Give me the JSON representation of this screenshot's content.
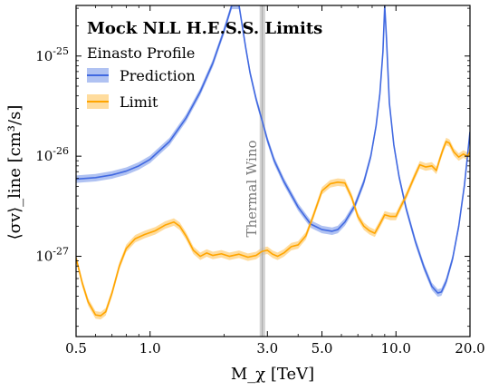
{
  "chart_data": {
    "type": "line",
    "title": "Mock NLL H.E.S.S. Limits",
    "subtitle": "Einasto Profile",
    "xlabel": "M_χ [TeV]",
    "ylabel": "⟨σv⟩_line [cm³/s]",
    "x_scale": "log",
    "y_scale": "log",
    "xlim": [
      0.5,
      20.0
    ],
    "ylim": [
      1.58e-28,
      3.2e-25
    ],
    "x_tick_values": [
      0.5,
      1.0,
      3.0,
      5.0,
      10.0,
      20.0
    ],
    "x_tick_labels": [
      "0.5",
      "1.0",
      "3.0",
      "5.0",
      "10.0",
      "20.0"
    ],
    "y_tick_values": [
      1e-27,
      1e-26,
      1e-25
    ],
    "y_tick_labels": [
      "10^-27",
      "10^-26",
      "10^-25"
    ],
    "legend_position": "top-left",
    "grid": false,
    "annotation": {
      "text": "Thermal Wino",
      "x_range": [
        2.79,
        2.94
      ]
    },
    "series": [
      {
        "name": "Prediction",
        "color": "#4169e1",
        "band_color": "#6f8fe8",
        "x": [
          0.5,
          0.6,
          0.7,
          0.8,
          0.9,
          1.0,
          1.2,
          1.4,
          1.6,
          1.8,
          2.0,
          2.15,
          2.3,
          2.45,
          2.55,
          2.7,
          2.85,
          3.0,
          3.2,
          3.5,
          4.0,
          4.5,
          5.0,
          5.5,
          5.8,
          6.2,
          6.8,
          7.4,
          7.9,
          8.3,
          8.6,
          8.85,
          9.0,
          9.15,
          9.4,
          9.8,
          10.3,
          11.0,
          12.0,
          13.0,
          14.0,
          14.8,
          15.3,
          16.0,
          17.0,
          18.0,
          19.0,
          20.0
        ],
        "values": [
          5.9e-27,
          6.1e-27,
          6.5e-27,
          7.1e-27,
          8e-27,
          9.3e-27,
          1.4e-26,
          2.4e-26,
          4.4e-26,
          8.5e-26,
          1.8e-25,
          3.2e-25,
          3.2e-25,
          1.2e-25,
          6.8e-26,
          3.7e-26,
          2.3e-26,
          1.45e-26,
          9e-27,
          5.6e-27,
          3.1e-27,
          2.1e-27,
          1.85e-27,
          1.78e-27,
          1.85e-27,
          2.2e-27,
          3.2e-27,
          5.5e-27,
          1e-26,
          2e-26,
          4.2e-26,
          1.1e-25,
          3.2e-25,
          1.5e-25,
          3.4e-26,
          1.3e-26,
          6.2e-27,
          3e-27,
          1.4e-27,
          7.8e-28,
          5e-28,
          4.3e-28,
          4.4e-28,
          5.6e-28,
          9.5e-28,
          2e-27,
          5.2e-27,
          1.75e-26
        ]
      },
      {
        "name": "Limit",
        "color": "#ffa500",
        "band_color": "#ffc04d",
        "x": [
          0.5,
          0.53,
          0.56,
          0.6,
          0.63,
          0.66,
          0.7,
          0.75,
          0.8,
          0.87,
          0.95,
          1.05,
          1.15,
          1.25,
          1.32,
          1.4,
          1.5,
          1.6,
          1.7,
          1.8,
          1.95,
          2.1,
          2.3,
          2.5,
          2.7,
          2.85,
          3.0,
          3.15,
          3.3,
          3.5,
          3.75,
          4.0,
          4.3,
          4.6,
          5.0,
          5.4,
          5.8,
          6.2,
          6.6,
          7.0,
          7.4,
          7.8,
          8.2,
          8.6,
          9.0,
          9.5,
          10.0,
          10.5,
          11.0,
          11.8,
          12.5,
          13.2,
          14.0,
          14.6,
          15.0,
          15.5,
          16.0,
          16.5,
          17.2,
          18.0,
          18.8,
          19.5,
          20.0
        ],
        "values": [
          9.6e-28,
          5.4e-28,
          3.5e-28,
          2.6e-28,
          2.55e-28,
          2.8e-28,
          4.3e-28,
          8e-28,
          1.2e-27,
          1.5e-27,
          1.65e-27,
          1.8e-27,
          2.05e-27,
          2.2e-27,
          2e-27,
          1.6e-27,
          1.15e-27,
          1e-27,
          1.08e-27,
          1.02e-27,
          1.06e-27,
          1e-27,
          1.05e-27,
          9.8e-28,
          1.02e-27,
          1.12e-27,
          1.15e-27,
          1.05e-27,
          1e-27,
          1.08e-27,
          1.25e-27,
          1.3e-27,
          1.6e-27,
          2.5e-27,
          4.5e-27,
          5.3e-27,
          5.5e-27,
          5.4e-27,
          3.9e-27,
          2.5e-27,
          2e-27,
          1.8e-27,
          1.7e-27,
          2.1e-27,
          2.6e-27,
          2.5e-27,
          2.5e-27,
          3.2e-27,
          4e-27,
          6e-27,
          8.2e-27,
          7.8e-27,
          8e-27,
          7.2e-27,
          9e-27,
          1.15e-26,
          1.4e-26,
          1.35e-26,
          1.1e-26,
          9.8e-27,
          1.05e-26,
          1e-26,
          1.1e-26
        ]
      }
    ]
  }
}
